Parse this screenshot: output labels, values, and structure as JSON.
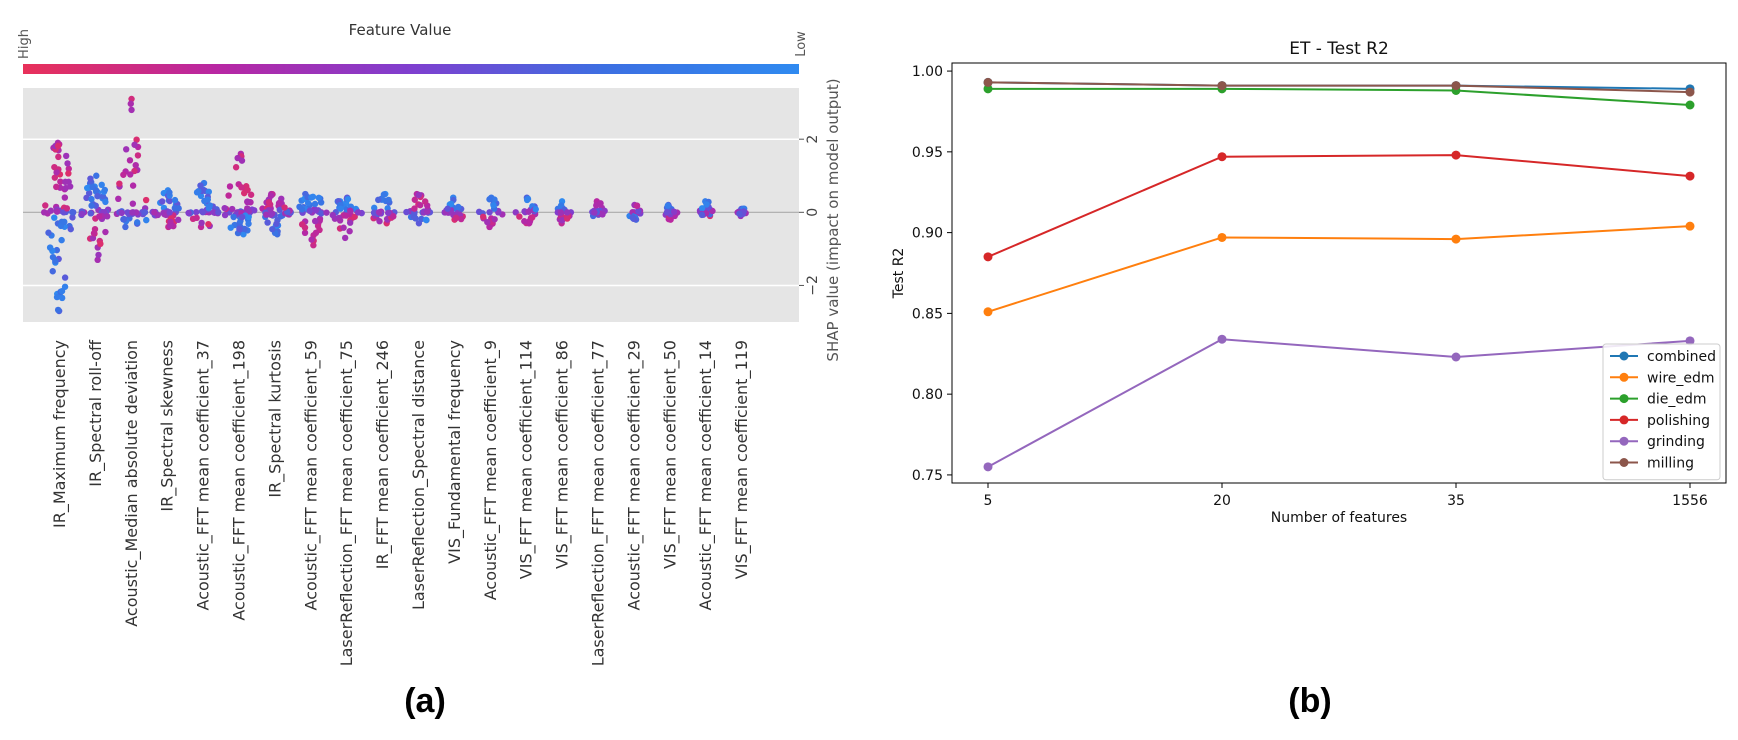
{
  "chart_data": [
    {
      "type": "scatter",
      "subtype": "shap-beeswarm",
      "title": "",
      "colorbar_title": "Feature Value",
      "colorbar_high": "High",
      "colorbar_low": "Low",
      "colorbar_colors": [
        "#e8315a",
        "#b827a3",
        "#7f3fcf",
        "#3c6fe2",
        "#2f8af0"
      ],
      "ylabel": "SHAP value (impact on model output)",
      "ylim": [
        -3,
        3.4
      ],
      "yticks": [
        -2,
        0,
        2
      ],
      "ytick_labels": [
        "−2",
        "0",
        "2"
      ],
      "features": [
        {
          "name": "IR_Maximum frequency",
          "min": -2.7,
          "max": 1.9,
          "pos_color": "high",
          "points": 70
        },
        {
          "name": "IR_Spectral roll-off",
          "min": -1.3,
          "max": 1.0,
          "pos_color": "low",
          "points": 55
        },
        {
          "name": "Acoustic_Median absolute deviation",
          "min": -0.4,
          "max": 3.1,
          "pos_color": "high",
          "points": 45
        },
        {
          "name": "IR_Spectral skewness",
          "min": -0.4,
          "max": 0.6,
          "pos_color": "low",
          "points": 40
        },
        {
          "name": "Acoustic_FFT mean coefficient_37",
          "min": -0.4,
          "max": 0.8,
          "pos_color": "low",
          "points": 40
        },
        {
          "name": "Acoustic_FFT mean coefficient_198",
          "min": -0.6,
          "max": 1.6,
          "pos_color": "high",
          "points": 55
        },
        {
          "name": "IR_Spectral kurtosis",
          "min": -0.6,
          "max": 0.5,
          "pos_color": "high",
          "points": 45
        },
        {
          "name": "Acoustic_FFT mean coefficient_59",
          "min": -0.9,
          "max": 0.5,
          "pos_color": "low",
          "points": 45
        },
        {
          "name": "LaserReflection_FFT mean coefficient_75",
          "min": -0.7,
          "max": 0.4,
          "pos_color": "low",
          "points": 40
        },
        {
          "name": "IR_FFT mean coefficient_246",
          "min": -0.3,
          "max": 0.5,
          "pos_color": "low",
          "points": 30
        },
        {
          "name": "LaserReflection_Spectral distance",
          "min": -0.3,
          "max": 0.5,
          "pos_color": "high",
          "points": 30
        },
        {
          "name": "VIS_Fundamental frequency",
          "min": -0.2,
          "max": 0.4,
          "pos_color": "low",
          "points": 25
        },
        {
          "name": "Acoustic_FFT mean coefficient_9",
          "min": -0.4,
          "max": 0.4,
          "pos_color": "low",
          "points": 25
        },
        {
          "name": "VIS_FFT mean coefficient_114",
          "min": -0.3,
          "max": 0.4,
          "pos_color": "low",
          "points": 25
        },
        {
          "name": "VIS_FFT mean coefficient_86",
          "min": -0.3,
          "max": 0.3,
          "pos_color": "low",
          "points": 20
        },
        {
          "name": "LaserReflection_FFT mean coefficient_77",
          "min": -0.1,
          "max": 0.3,
          "pos_color": "high",
          "points": 20
        },
        {
          "name": "Acoustic_FFT mean coefficient_29",
          "min": -0.2,
          "max": 0.2,
          "pos_color": "high",
          "points": 20
        },
        {
          "name": "VIS_FFT mean coefficient_50",
          "min": -0.2,
          "max": 0.2,
          "pos_color": "low",
          "points": 20
        },
        {
          "name": "Acoustic_FFT mean coefficient_14",
          "min": -0.1,
          "max": 0.3,
          "pos_color": "low",
          "points": 20
        },
        {
          "name": "VIS_FFT mean coefficient_119",
          "min": -0.1,
          "max": 0.1,
          "pos_color": "low",
          "points": 15
        }
      ],
      "panel_label": "(a)"
    },
    {
      "type": "line",
      "title": "ET - Test R2",
      "xlabel": "Number of features",
      "ylabel": "Test R2",
      "categories": [
        "5",
        "20",
        "35",
        "1556"
      ],
      "ylim": [
        0.745,
        1.005
      ],
      "yticks": [
        0.75,
        0.8,
        0.85,
        0.9,
        0.95,
        1.0
      ],
      "ytick_labels": [
        "0.75",
        "0.80",
        "0.85",
        "0.90",
        "0.95",
        "1.00"
      ],
      "legend_position": "lower-right",
      "series": [
        {
          "name": "combined",
          "color": "#1f77b4",
          "values": [
            0.993,
            0.991,
            0.991,
            0.989
          ]
        },
        {
          "name": "wire_edm",
          "color": "#ff7f0e",
          "values": [
            0.851,
            0.897,
            0.896,
            0.904
          ]
        },
        {
          "name": "die_edm",
          "color": "#2ca02c",
          "values": [
            0.989,
            0.989,
            0.988,
            0.979
          ]
        },
        {
          "name": "polishing",
          "color": "#d62728",
          "values": [
            0.885,
            0.947,
            0.948,
            0.935
          ]
        },
        {
          "name": "grinding",
          "color": "#9467bd",
          "values": [
            0.755,
            0.834,
            0.823,
            0.833
          ]
        },
        {
          "name": "milling",
          "color": "#8c564b",
          "values": [
            0.993,
            0.991,
            0.991,
            0.987
          ]
        }
      ],
      "panel_label": "(b)"
    }
  ]
}
